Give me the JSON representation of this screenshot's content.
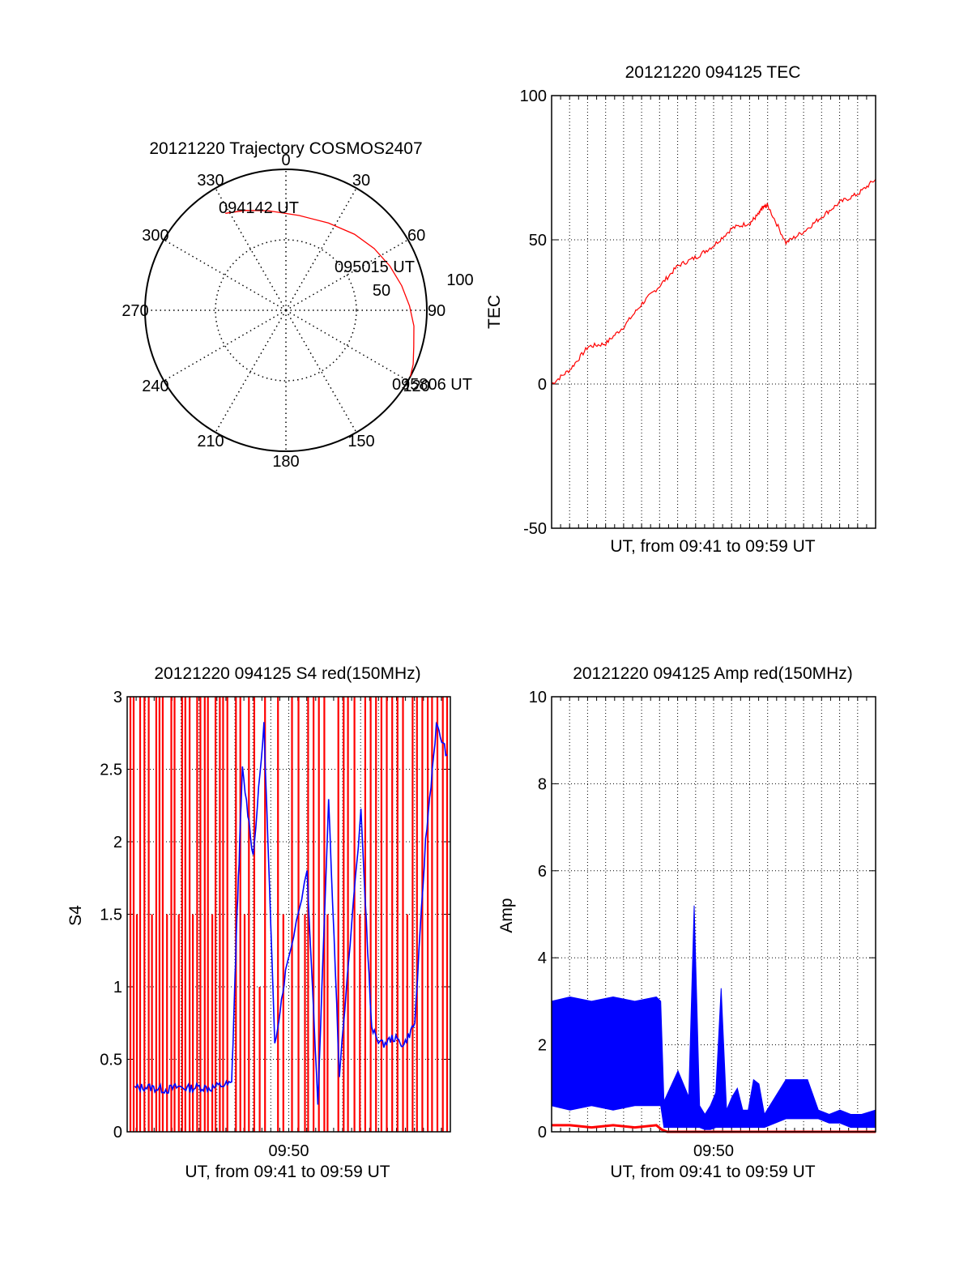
{
  "chart_data": [
    {
      "type": "polar",
      "title": "20121220 Trajectory COSMOS2407",
      "angle_labels": [
        "0",
        "30",
        "60",
        "90",
        "120",
        "150",
        "180",
        "210",
        "240",
        "270",
        "300",
        "330"
      ],
      "radial_labels": [
        "50",
        "100"
      ],
      "series": [
        {
          "color": "#ff0000",
          "points": [
            {
              "azimuth": 328,
              "zenith_angle": 86
            },
            {
              "azimuth": 338,
              "zenith_angle": 81
            },
            {
              "azimuth": 350,
              "zenith_angle": 76
            },
            {
              "azimuth": 8,
              "zenith_angle": 72
            },
            {
              "azimuth": 26,
              "zenith_angle": 73
            },
            {
              "azimuth": 42,
              "zenith_angle": 77
            },
            {
              "azimuth": 55,
              "zenith_angle": 81
            },
            {
              "azimuth": 67,
              "zenith_angle": 85
            },
            {
              "azimuth": 78,
              "zenith_angle": 89
            },
            {
              "azimuth": 88,
              "zenith_angle": 93
            },
            {
              "azimuth": 97,
              "zenith_angle": 97
            },
            {
              "azimuth": 106,
              "zenith_angle": 100
            },
            {
              "azimuth": 113,
              "zenith_angle": 104
            },
            {
              "azimuth": 118,
              "zenith_angle": 106
            }
          ]
        }
      ],
      "annotations": [
        {
          "text": "094142 UT",
          "azimuth": 328,
          "zenith_angle": 86
        },
        {
          "text": "095015 UT",
          "azimuth": 52,
          "zenith_angle": 80
        },
        {
          "text": "095806 UT",
          "azimuth": 118,
          "zenith_angle": 106
        }
      ]
    },
    {
      "type": "line",
      "title": "20121220 094125 TEC",
      "xlabel": "UT, from 09:41 to 09:59 UT",
      "ylabel": "TEC",
      "xlim": [
        9.683,
        9.983
      ],
      "ylim": [
        -50,
        100
      ],
      "yticks": [
        "-50",
        "0",
        "50",
        "100"
      ],
      "xticks": [],
      "grid": true,
      "series": [
        {
          "color": "#ff0000",
          "x": [
            9.683,
            9.7,
            9.717,
            9.733,
            9.75,
            9.767,
            9.783,
            9.8,
            9.817,
            9.833,
            9.85,
            9.867,
            9.875,
            9.878,
            9.883,
            9.9,
            9.917,
            9.933,
            9.95,
            9.967,
            9.983
          ],
          "y": [
            0,
            5,
            13,
            14,
            20,
            28,
            34,
            41,
            44,
            48,
            54,
            56,
            59,
            61,
            62,
            49,
            53,
            58,
            63,
            66,
            71
          ]
        }
      ]
    },
    {
      "type": "line",
      "title": "20121220 094125 S4 red(150MHz)",
      "xlabel": "UT, from 09:41 to 09:59 UT",
      "ylabel": "S4",
      "xlim": [
        9.683,
        9.983
      ],
      "ylim": [
        0,
        3
      ],
      "yticks": [
        "0",
        "0.5",
        "1",
        "1.5",
        "2",
        "2.5",
        "3"
      ],
      "xticks": [
        {
          "value": 9.833,
          "label": "09:50"
        }
      ],
      "grid": true,
      "series": [
        {
          "color": "#ff0000",
          "style": "spikes",
          "x": [
            9.686,
            9.689,
            9.692,
            9.695,
            9.699,
            9.703,
            9.706,
            9.71,
            9.713,
            9.716,
            9.72,
            9.724,
            9.727,
            9.731,
            9.734,
            9.737,
            9.741,
            9.744,
            9.748,
            9.751,
            9.755,
            9.758,
            9.762,
            9.765,
            9.769,
            9.772,
            9.776,
            9.784,
            9.788,
            9.792,
            9.796,
            9.801,
            9.806,
            9.811,
            9.823,
            9.828,
            9.836,
            9.842,
            9.848,
            9.851,
            9.856,
            9.861,
            9.866,
            9.869,
            9.879,
            9.884,
            9.888,
            9.894,
            9.899,
            9.904,
            9.909,
            9.914,
            9.919,
            9.924,
            9.929,
            9.934,
            9.939,
            9.943,
            9.948,
            9.952,
            9.957,
            9.962,
            9.966,
            9.971,
            9.976,
            9.98
          ],
          "y": [
            3,
            3,
            1.5,
            3,
            3,
            3,
            1.5,
            3,
            3,
            3,
            1.5,
            3,
            3,
            1.5,
            3,
            3,
            3,
            1.5,
            3,
            3,
            3,
            3,
            1.5,
            3,
            3,
            3,
            3,
            3,
            3,
            1.5,
            3,
            3,
            1,
            3,
            3,
            1.5,
            3,
            3,
            1.5,
            3,
            3,
            3,
            3,
            1.5,
            3,
            3,
            3,
            3,
            1.5,
            3,
            3,
            3,
            3,
            3,
            3,
            3,
            3,
            1.5,
            3,
            3,
            3,
            3,
            3,
            3,
            3,
            3
          ]
        },
        {
          "color": "#0000ff",
          "x": [
            9.69,
            9.7,
            9.71,
            9.72,
            9.73,
            9.74,
            9.75,
            9.76,
            9.77,
            9.78,
            9.785,
            9.79,
            9.8,
            9.81,
            9.82,
            9.83,
            9.85,
            9.86,
            9.87,
            9.88,
            9.9,
            9.91,
            9.92,
            9.93,
            9.94,
            9.95,
            9.96,
            9.97,
            9.98
          ],
          "y": [
            0.3,
            0.31,
            0.3,
            0.29,
            0.31,
            0.3,
            0.31,
            0.3,
            0.32,
            0.33,
            1.5,
            2.5,
            1.9,
            2.8,
            0.6,
            1.1,
            1.8,
            0.2,
            2.3,
            0.4,
            2.2,
            0.7,
            0.6,
            0.65,
            0.6,
            0.75,
            2.0,
            2.8,
            2.6
          ]
        }
      ]
    },
    {
      "type": "line",
      "title": "20121220 094125 Amp red(150MHz)",
      "xlabel": "UT, from 09:41 to 09:59 UT",
      "ylabel": "Amp",
      "xlim": [
        9.683,
        9.983
      ],
      "ylim": [
        0,
        10
      ],
      "yticks": [
        "0",
        "2",
        "4",
        "6",
        "8",
        "10"
      ],
      "xticks": [
        {
          "value": 9.833,
          "label": "09:50"
        }
      ],
      "grid": true,
      "series": [
        {
          "color": "#0000ff",
          "band": {
            "x": [
              9.683,
              9.7,
              9.72,
              9.74,
              9.76,
              9.78,
              9.784,
              9.787,
              9.8,
              9.81,
              9.815,
              9.82,
              9.825,
              9.83,
              9.835,
              9.84,
              9.845,
              9.85,
              9.855,
              9.86,
              9.865,
              9.87,
              9.875,
              9.88,
              9.9,
              9.92,
              9.93,
              9.94,
              9.95,
              9.96,
              9.97,
              9.983
            ],
            "low": [
              0.6,
              0.5,
              0.6,
              0.5,
              0.6,
              0.6,
              0.6,
              0.1,
              0.1,
              0.1,
              0.1,
              0.1,
              0.05,
              0.05,
              0.1,
              0.1,
              0.1,
              0.1,
              0.1,
              0.1,
              0.1,
              0.1,
              0.1,
              0.1,
              0.3,
              0.3,
              0.3,
              0.2,
              0.2,
              0.1,
              0.1,
              0.1
            ],
            "high": [
              3.0,
              3.1,
              3.0,
              3.1,
              3.0,
              3.1,
              3.0,
              0.7,
              1.4,
              0.8,
              5.2,
              0.6,
              0.4,
              0.6,
              0.9,
              3.3,
              0.5,
              0.8,
              1.0,
              0.5,
              0.5,
              1.2,
              1.1,
              0.4,
              1.2,
              1.2,
              0.5,
              0.4,
              0.5,
              0.4,
              0.4,
              0.5
            ]
          }
        },
        {
          "color": "#ff0000",
          "x": [
            9.683,
            9.7,
            9.72,
            9.74,
            9.76,
            9.78,
            9.785,
            9.79,
            9.983
          ],
          "y": [
            0.15,
            0.15,
            0.1,
            0.15,
            0.1,
            0.15,
            0.05,
            0.0,
            0.0
          ]
        }
      ]
    }
  ]
}
